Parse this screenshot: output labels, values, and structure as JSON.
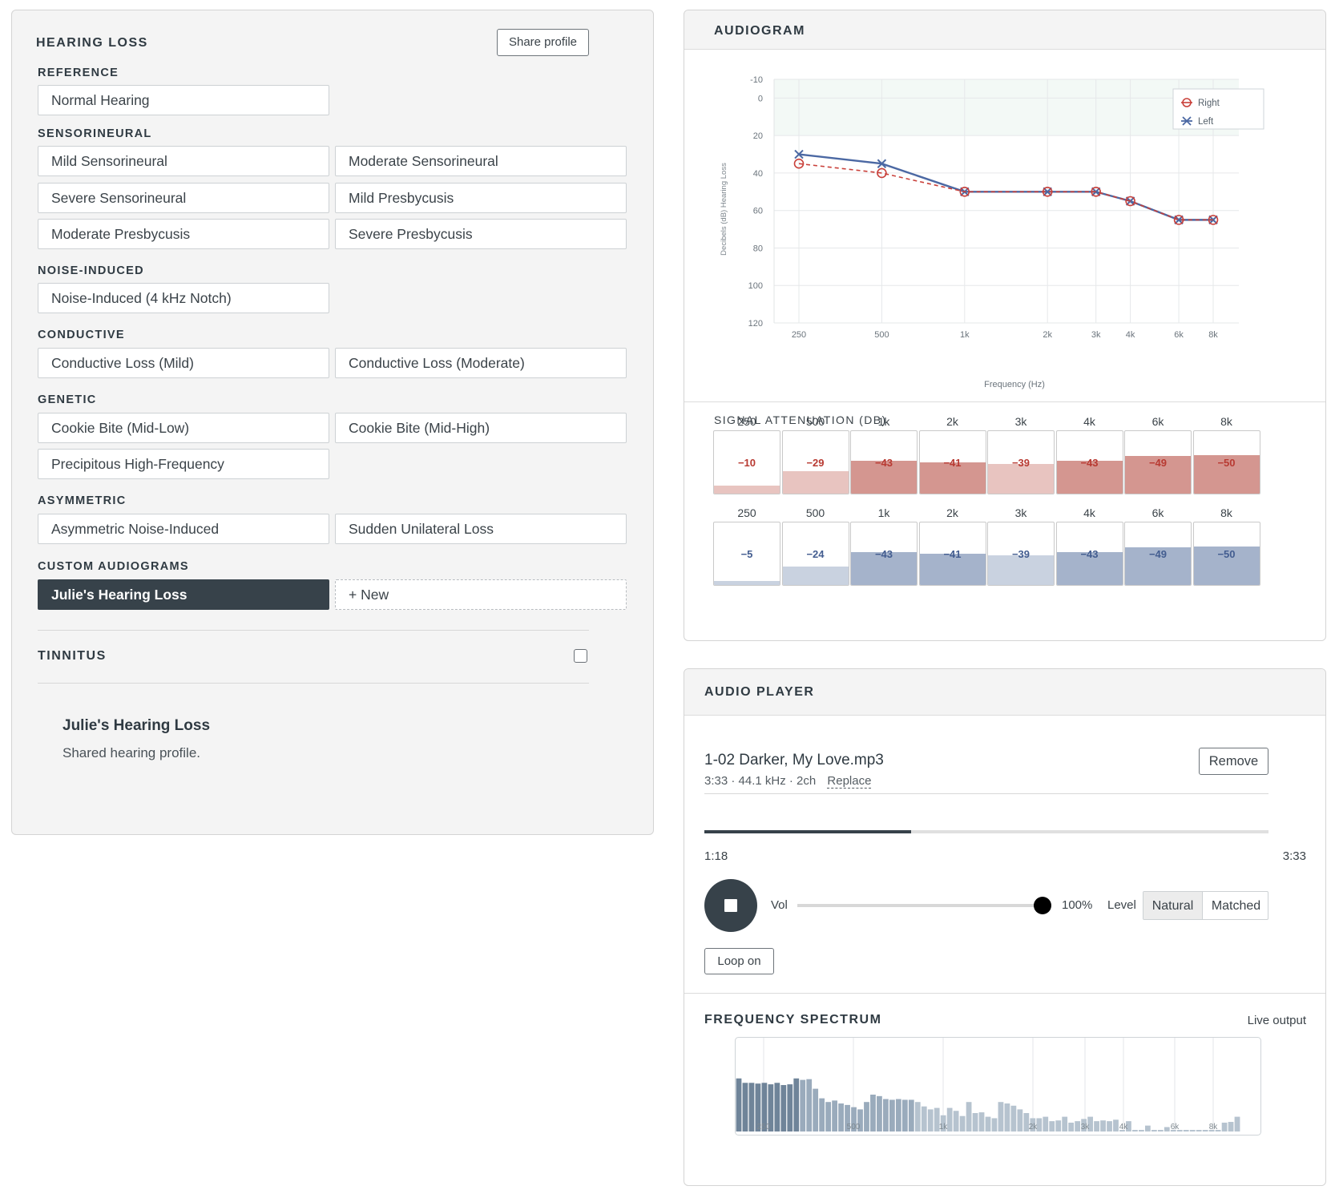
{
  "hearing_loss": {
    "title": "HEARING LOSS",
    "share_label": "Share profile",
    "groups": {
      "reference": {
        "label": "REFERENCE",
        "items": [
          "Normal Hearing"
        ]
      },
      "sensorineural": {
        "label": "SENSORINEURAL",
        "items": [
          "Mild Sensorineural",
          "Moderate Sensorineural",
          "Severe Sensorineural",
          "Mild Presbycusis",
          "Moderate Presbycusis",
          "Severe Presbycusis"
        ]
      },
      "noise": {
        "label": "NOISE-INDUCED",
        "items": [
          "Noise-Induced (4 kHz Notch)"
        ]
      },
      "conductive": {
        "label": "CONDUCTIVE",
        "items": [
          "Conductive Loss (Mild)",
          "Conductive Loss (Moderate)"
        ]
      },
      "genetic": {
        "label": "GENETIC",
        "items": [
          "Cookie Bite (Mid-Low)",
          "Cookie Bite (Mid-High)",
          "Precipitous High-Frequency"
        ]
      },
      "asymmetric": {
        "label": "ASYMMETRIC",
        "items": [
          "Asymmetric Noise-Induced",
          "Sudden Unilateral Loss"
        ]
      },
      "custom": {
        "label": "CUSTOM AUDIOGRAMS",
        "items": [
          "Julie's Hearing Loss",
          "+ New"
        ]
      }
    },
    "tinnitus_label": "TINNITUS",
    "tinnitus_checked": false,
    "profile_name": "Julie's Hearing Loss",
    "profile_desc": "Shared hearing profile."
  },
  "audiogram": {
    "title": "AUDIOGRAM",
    "legend": {
      "right": "Right",
      "left": "Left"
    },
    "xlabel": "Frequency (Hz)",
    "ylabel": "Decibels (dB) Hearing Loss",
    "colors": {
      "right": "#c9403a",
      "left": "#4b68a3"
    }
  },
  "chart_data": {
    "type": "line",
    "x_ticks": [
      "250",
      "500",
      "1k",
      "2k",
      "3k",
      "4k",
      "6k",
      "8k"
    ],
    "x": [
      250,
      500,
      1000,
      2000,
      3000,
      4000,
      6000,
      8000
    ],
    "y_ticks": [
      -10,
      0,
      20,
      40,
      60,
      80,
      100,
      120
    ],
    "ylim": [
      -10,
      120
    ],
    "series": [
      {
        "name": "Right",
        "values": [
          35,
          40,
          50,
          50,
          50,
          55,
          65,
          65
        ]
      },
      {
        "name": "Left",
        "values": [
          30,
          35,
          50,
          50,
          50,
          55,
          65,
          65
        ]
      }
    ]
  },
  "attenuation": {
    "title": "SIGNAL ATTENUATION (DB)",
    "freqs": [
      "250",
      "500",
      "1k",
      "2k",
      "3k",
      "4k",
      "6k",
      "8k"
    ],
    "right": [
      "−10",
      "−29",
      "−43",
      "−41",
      "−39",
      "−43",
      "−49",
      "−50"
    ],
    "left": [
      "−5",
      "−24",
      "−43",
      "−41",
      "−39",
      "−43",
      "−49",
      "−50"
    ],
    "right_levels": [
      10,
      29,
      43,
      41,
      39,
      43,
      49,
      50
    ],
    "left_levels": [
      5,
      24,
      43,
      41,
      39,
      43,
      49,
      50
    ]
  },
  "player": {
    "title": "AUDIO PLAYER",
    "file_name": "1-02 Darker, My Love.mp3",
    "meta": "3:33 · 44.1 kHz · 2ch",
    "replace_label": "Replace",
    "remove_label": "Remove",
    "elapsed": "1:18",
    "duration": "3:33",
    "progress": 0.366,
    "vol_label": "Vol",
    "volume": "100%",
    "volume_level": 1.0,
    "level_label": "Level",
    "level_options": [
      "Natural",
      "Matched"
    ],
    "level_selected": "Natural",
    "loop_label": "Loop on"
  },
  "spectrum": {
    "title": "FREQUENCY SPECTRUM",
    "status": "Live output",
    "ticks": [
      "250",
      "500",
      "1k",
      "2k",
      "3k",
      "4k",
      "6k",
      "8k"
    ],
    "bars": [
      0.72,
      0.66,
      0.66,
      0.65,
      0.66,
      0.64,
      0.66,
      0.63,
      0.64,
      0.72,
      0.7,
      0.71,
      0.58,
      0.45,
      0.4,
      0.42,
      0.38,
      0.36,
      0.33,
      0.3,
      0.4,
      0.5,
      0.48,
      0.44,
      0.43,
      0.44,
      0.43,
      0.43,
      0.4,
      0.34,
      0.3,
      0.32,
      0.22,
      0.32,
      0.28,
      0.21,
      0.4,
      0.25,
      0.26,
      0.2,
      0.18,
      0.4,
      0.38,
      0.35,
      0.3,
      0.25,
      0.18,
      0.18,
      0.2,
      0.14,
      0.15,
      0.2,
      0.12,
      0.14,
      0.17,
      0.2,
      0.14,
      0.15,
      0.14,
      0.16,
      0.02,
      0.14,
      0.02,
      0.02,
      0.08,
      0.02,
      0.02,
      0.06,
      0.02,
      0.02,
      0.02,
      0.02,
      0.02,
      0.02,
      0.02,
      0.02,
      0.12,
      0.13,
      0.2
    ]
  }
}
